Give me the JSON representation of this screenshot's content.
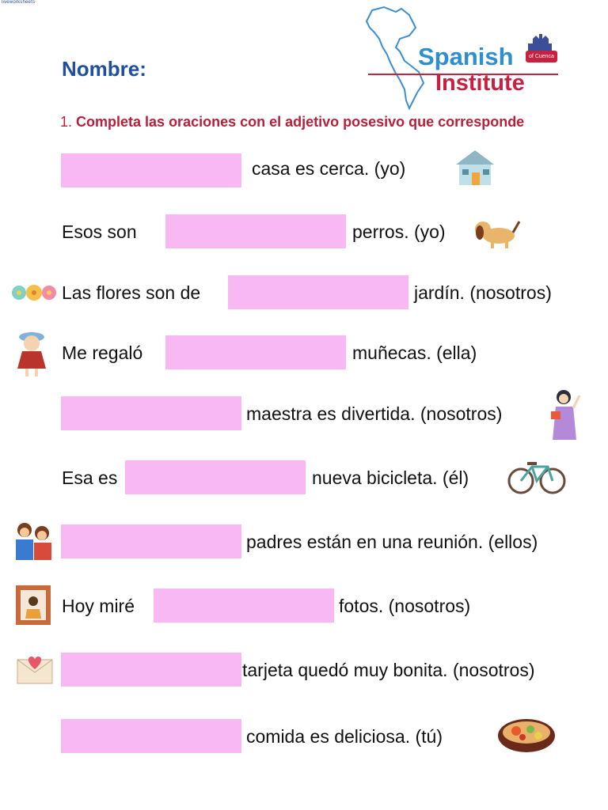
{
  "watermark": "liveworksheets",
  "header": {
    "name_label": "Nombre:",
    "logo": {
      "word1": "Spanish",
      "word2": "Institute",
      "tag": "of Cuenca"
    }
  },
  "instruction": {
    "number": "1.",
    "text": "Completa las oraciones con el adjetivo posesivo que corresponde"
  },
  "sentences": [
    {
      "before": "",
      "after": "casa es cerca. (yo)",
      "icon": "house-icon"
    },
    {
      "before": "Esos son",
      "after": "perros. (yo)",
      "icon": "dog-icon"
    },
    {
      "before": "Las flores son de",
      "after": "jardín. (nosotros)",
      "icon": "flowers-icon"
    },
    {
      "before": "Me regaló",
      "after": "muñecas. (ella)",
      "icon": "doll-icon"
    },
    {
      "before": "",
      "after": "maestra es divertida. (nosotros)",
      "icon": "teacher-icon"
    },
    {
      "before": "Esa es",
      "after": "nueva bicicleta. (él)",
      "icon": "bicycle-icon"
    },
    {
      "before": "",
      "after": "padres están en una reunión. (ellos)",
      "icon": "parents-icon"
    },
    {
      "before": "Hoy miré",
      "after": "fotos. (nosotros)",
      "icon": "photo-frame-icon"
    },
    {
      "before": "",
      "after": "tarjeta quedó muy  bonita. (nosotros)",
      "icon": "envelope-icon"
    },
    {
      "before": "",
      "after": "comida es deliciosa. (tú)",
      "icon": "food-bowl-icon"
    }
  ],
  "colors": {
    "blank": "#f7b8f4",
    "title_blue": "#1f4fa0",
    "instruction_red": "#b8203a"
  }
}
